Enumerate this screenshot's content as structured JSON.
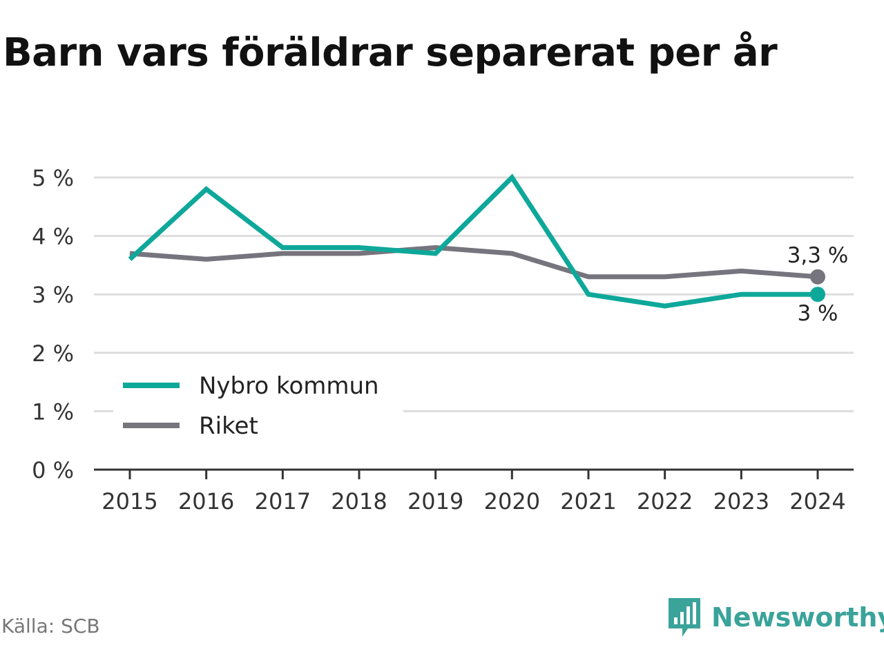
{
  "title": "Barn vars föräldrar separerat per år",
  "source": "Källa: SCB",
  "brand": {
    "name": "Newsworthy",
    "icon": "newsworthy-logo-icon"
  },
  "colors": {
    "nybro": "#0ea89a",
    "riket": "#76747d",
    "grid": "#dddddd",
    "axis": "#333333"
  },
  "chart_data": {
    "type": "line",
    "x": [
      2015,
      2016,
      2017,
      2018,
      2019,
      2020,
      2021,
      2022,
      2023,
      2024
    ],
    "x_tick_labels": [
      "2015",
      "2016",
      "2017",
      "2018",
      "2019",
      "2020",
      "2021",
      "2022",
      "2023",
      "2024"
    ],
    "y_tick_labels": [
      "0 %",
      "1 %",
      "2 %",
      "3 %",
      "4 %",
      "5 %"
    ],
    "ylim": [
      0,
      5
    ],
    "yticks": [
      0,
      1,
      2,
      3,
      4,
      5
    ],
    "grid": "horizontal",
    "legend_position": "bottom-left",
    "series": [
      {
        "name": "Nybro kommun",
        "color": "#0ea89a",
        "values": [
          3.6,
          4.8,
          3.8,
          3.8,
          3.7,
          5.0,
          3.0,
          2.8,
          3.0,
          3.0
        ],
        "end_label": "3 %"
      },
      {
        "name": "Riket",
        "color": "#76747d",
        "values": [
          3.7,
          3.6,
          3.7,
          3.7,
          3.8,
          3.7,
          3.3,
          3.3,
          3.4,
          3.3
        ],
        "end_label": "3,3 %"
      }
    ]
  }
}
